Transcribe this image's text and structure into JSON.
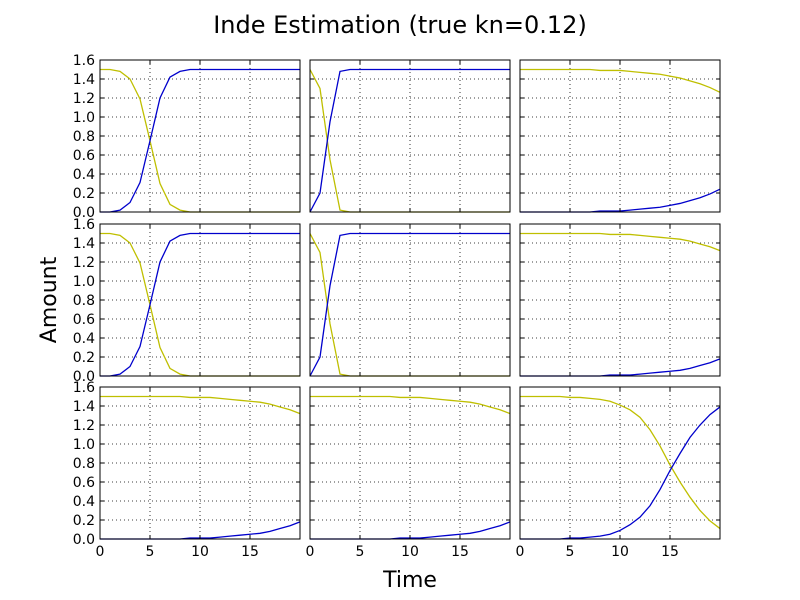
{
  "figure": {
    "title": "Inde Estimation (true kn=0.12)",
    "xlabel": "Time",
    "ylabel": "Amount"
  },
  "colors": {
    "yellow_series": "#bfbf00",
    "blue_series": "#0000cc",
    "grid": "#000000",
    "frame": "#000000"
  },
  "chart_data": {
    "type": "line",
    "layout": "3x3 grid of subplots sharing axes",
    "xlim": [
      0,
      20
    ],
    "ylim": [
      0,
      1.6
    ],
    "x_ticks": [
      0,
      5,
      10,
      15
    ],
    "y_ticks": [
      0.0,
      0.2,
      0.4,
      0.6,
      0.8,
      1.0,
      1.2,
      1.4,
      1.6
    ],
    "x_tick_labels": [
      "0",
      "5",
      "10",
      "15"
    ],
    "y_tick_labels": [
      "0.0",
      "0.2",
      "0.4",
      "0.6",
      "0.8",
      "1.0",
      "1.2",
      "1.4",
      "1.6"
    ],
    "grid": true,
    "grid_style": "dotted",
    "x": [
      0,
      1,
      2,
      3,
      4,
      5,
      6,
      7,
      8,
      9,
      10,
      11,
      12,
      13,
      14,
      15,
      16,
      17,
      18,
      19,
      20
    ],
    "subplots": [
      {
        "row": 1,
        "col": 1,
        "series": [
          {
            "color": "yellow",
            "values": [
              1.5,
              1.5,
              1.48,
              1.4,
              1.19,
              0.75,
              0.3,
              0.08,
              0.02,
              0.0,
              0.0,
              0.0,
              0.0,
              0.0,
              0.0,
              0.0,
              0.0,
              0.0,
              0.0,
              0.0,
              0.0
            ]
          },
          {
            "color": "blue",
            "values": [
              0.0,
              0.0,
              0.02,
              0.1,
              0.31,
              0.75,
              1.2,
              1.42,
              1.48,
              1.5,
              1.5,
              1.5,
              1.5,
              1.5,
              1.5,
              1.5,
              1.5,
              1.5,
              1.5,
              1.5,
              1.5
            ]
          }
        ]
      },
      {
        "row": 1,
        "col": 2,
        "series": [
          {
            "color": "yellow",
            "values": [
              1.5,
              1.3,
              0.55,
              0.02,
              0.0,
              0.0,
              0.0,
              0.0,
              0.0,
              0.0,
              0.0,
              0.0,
              0.0,
              0.0,
              0.0,
              0.0,
              0.0,
              0.0,
              0.0,
              0.0,
              0.0
            ]
          },
          {
            "color": "blue",
            "values": [
              0.0,
              0.2,
              0.95,
              1.48,
              1.5,
              1.5,
              1.5,
              1.5,
              1.5,
              1.5,
              1.5,
              1.5,
              1.5,
              1.5,
              1.5,
              1.5,
              1.5,
              1.5,
              1.5,
              1.5,
              1.5
            ]
          }
        ]
      },
      {
        "row": 1,
        "col": 3,
        "series": [
          {
            "color": "yellow",
            "values": [
              1.5,
              1.5,
              1.5,
              1.5,
              1.5,
              1.5,
              1.5,
              1.5,
              1.49,
              1.49,
              1.49,
              1.48,
              1.47,
              1.46,
              1.45,
              1.43,
              1.41,
              1.38,
              1.35,
              1.31,
              1.26
            ]
          },
          {
            "color": "blue",
            "values": [
              0.0,
              0.0,
              0.0,
              0.0,
              0.0,
              0.0,
              0.0,
              0.0,
              0.01,
              0.01,
              0.01,
              0.02,
              0.03,
              0.04,
              0.05,
              0.07,
              0.09,
              0.12,
              0.15,
              0.19,
              0.24
            ]
          }
        ]
      },
      {
        "row": 2,
        "col": 1,
        "series": [
          {
            "color": "yellow",
            "values": [
              1.5,
              1.5,
              1.48,
              1.4,
              1.19,
              0.75,
              0.3,
              0.08,
              0.02,
              0.0,
              0.0,
              0.0,
              0.0,
              0.0,
              0.0,
              0.0,
              0.0,
              0.0,
              0.0,
              0.0,
              0.0
            ]
          },
          {
            "color": "blue",
            "values": [
              0.0,
              0.0,
              0.02,
              0.1,
              0.31,
              0.75,
              1.2,
              1.42,
              1.48,
              1.5,
              1.5,
              1.5,
              1.5,
              1.5,
              1.5,
              1.5,
              1.5,
              1.5,
              1.5,
              1.5,
              1.5
            ]
          }
        ]
      },
      {
        "row": 2,
        "col": 2,
        "series": [
          {
            "color": "yellow",
            "values": [
              1.5,
              1.3,
              0.55,
              0.02,
              0.0,
              0.0,
              0.0,
              0.0,
              0.0,
              0.0,
              0.0,
              0.0,
              0.0,
              0.0,
              0.0,
              0.0,
              0.0,
              0.0,
              0.0,
              0.0,
              0.0
            ]
          },
          {
            "color": "blue",
            "values": [
              0.0,
              0.2,
              0.95,
              1.48,
              1.5,
              1.5,
              1.5,
              1.5,
              1.5,
              1.5,
              1.5,
              1.5,
              1.5,
              1.5,
              1.5,
              1.5,
              1.5,
              1.5,
              1.5,
              1.5,
              1.5
            ]
          }
        ]
      },
      {
        "row": 2,
        "col": 3,
        "series": [
          {
            "color": "yellow",
            "values": [
              1.5,
              1.5,
              1.5,
              1.5,
              1.5,
              1.5,
              1.5,
              1.5,
              1.5,
              1.49,
              1.49,
              1.49,
              1.48,
              1.47,
              1.46,
              1.45,
              1.44,
              1.42,
              1.39,
              1.36,
              1.32
            ]
          },
          {
            "color": "blue",
            "values": [
              0.0,
              0.0,
              0.0,
              0.0,
              0.0,
              0.0,
              0.0,
              0.0,
              0.0,
              0.01,
              0.01,
              0.01,
              0.02,
              0.03,
              0.04,
              0.05,
              0.06,
              0.08,
              0.11,
              0.14,
              0.18
            ]
          }
        ]
      },
      {
        "row": 3,
        "col": 1,
        "series": [
          {
            "color": "yellow",
            "values": [
              1.5,
              1.5,
              1.5,
              1.5,
              1.5,
              1.5,
              1.5,
              1.5,
              1.5,
              1.49,
              1.49,
              1.49,
              1.48,
              1.47,
              1.46,
              1.45,
              1.44,
              1.42,
              1.39,
              1.36,
              1.32
            ]
          },
          {
            "color": "blue",
            "values": [
              0.0,
              0.0,
              0.0,
              0.0,
              0.0,
              0.0,
              0.0,
              0.0,
              0.0,
              0.01,
              0.01,
              0.01,
              0.02,
              0.03,
              0.04,
              0.05,
              0.06,
              0.08,
              0.11,
              0.14,
              0.18
            ]
          }
        ]
      },
      {
        "row": 3,
        "col": 2,
        "series": [
          {
            "color": "yellow",
            "values": [
              1.5,
              1.5,
              1.5,
              1.5,
              1.5,
              1.5,
              1.5,
              1.5,
              1.5,
              1.49,
              1.49,
              1.49,
              1.48,
              1.47,
              1.46,
              1.45,
              1.44,
              1.42,
              1.39,
              1.36,
              1.32
            ]
          },
          {
            "color": "blue",
            "values": [
              0.0,
              0.0,
              0.0,
              0.0,
              0.0,
              0.0,
              0.0,
              0.0,
              0.0,
              0.01,
              0.01,
              0.01,
              0.02,
              0.03,
              0.04,
              0.05,
              0.06,
              0.08,
              0.11,
              0.14,
              0.18
            ]
          }
        ]
      },
      {
        "row": 3,
        "col": 3,
        "series": [
          {
            "color": "yellow",
            "values": [
              1.5,
              1.5,
              1.5,
              1.5,
              1.5,
              1.49,
              1.49,
              1.48,
              1.47,
              1.45,
              1.41,
              1.36,
              1.28,
              1.15,
              0.98,
              0.78,
              0.6,
              0.44,
              0.3,
              0.19,
              0.11
            ]
          },
          {
            "color": "blue",
            "values": [
              0.0,
              0.0,
              0.0,
              0.0,
              0.0,
              0.01,
              0.01,
              0.02,
              0.03,
              0.05,
              0.09,
              0.15,
              0.23,
              0.35,
              0.52,
              0.72,
              0.9,
              1.07,
              1.2,
              1.31,
              1.39
            ]
          }
        ]
      }
    ]
  }
}
